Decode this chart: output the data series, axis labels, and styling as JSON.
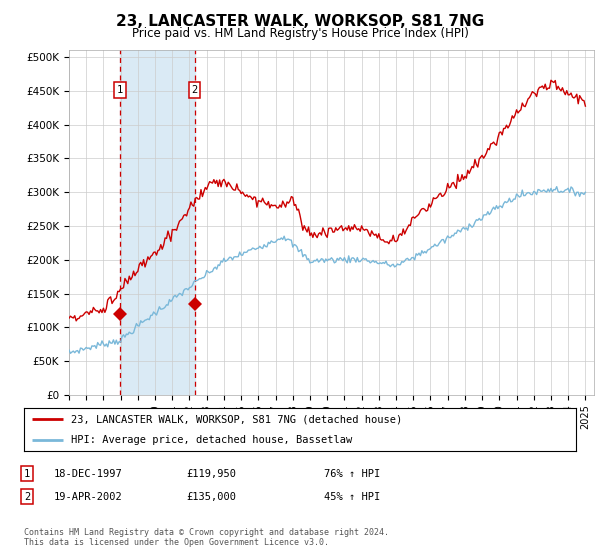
{
  "title": "23, LANCASTER WALK, WORKSOP, S81 7NG",
  "subtitle": "Price paid vs. HM Land Registry's House Price Index (HPI)",
  "ylabel_ticks": [
    "£0",
    "£50K",
    "£100K",
    "£150K",
    "£200K",
    "£250K",
    "£300K",
    "£350K",
    "£400K",
    "£450K",
    "£500K"
  ],
  "ytick_values": [
    0,
    50000,
    100000,
    150000,
    200000,
    250000,
    300000,
    350000,
    400000,
    450000,
    500000
  ],
  "ylim": [
    0,
    510000
  ],
  "xlim_start": 1995.0,
  "xlim_end": 2025.5,
  "xtick_years": [
    1995,
    1996,
    1997,
    1998,
    1999,
    2000,
    2001,
    2002,
    2003,
    2004,
    2005,
    2006,
    2007,
    2008,
    2009,
    2010,
    2011,
    2012,
    2013,
    2014,
    2015,
    2016,
    2017,
    2018,
    2019,
    2020,
    2021,
    2022,
    2023,
    2024,
    2025
  ],
  "hpi_color": "#7ab8d9",
  "price_color": "#cc0000",
  "vline_color": "#cc0000",
  "vshade_color": "#daeaf5",
  "marker_color": "#cc0000",
  "legend_label_price": "23, LANCASTER WALK, WORKSOP, S81 7NG (detached house)",
  "legend_label_hpi": "HPI: Average price, detached house, Bassetlaw",
  "purchase1_x": 1997.96,
  "purchase1_y": 119950,
  "purchase1_label": "1",
  "purchase2_x": 2002.3,
  "purchase2_y": 135000,
  "purchase2_label": "2",
  "table_rows": [
    {
      "num": "1",
      "date": "18-DEC-1997",
      "price": "£119,950",
      "hpi": "76% ↑ HPI"
    },
    {
      "num": "2",
      "date": "19-APR-2002",
      "price": "£135,000",
      "hpi": "45% ↑ HPI"
    }
  ],
  "footnote": "Contains HM Land Registry data © Crown copyright and database right 2024.\nThis data is licensed under the Open Government Licence v3.0.",
  "background_color": "#ffffff",
  "grid_color": "#cccccc"
}
